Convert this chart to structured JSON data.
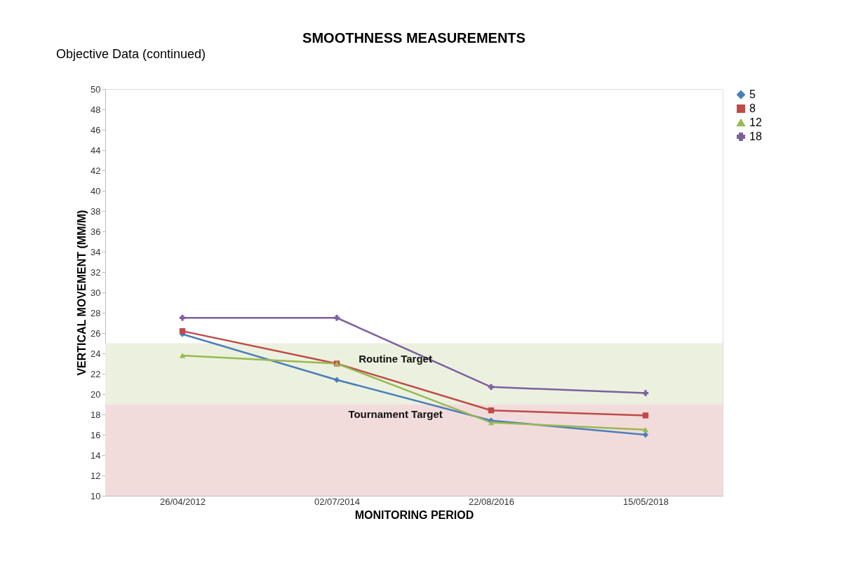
{
  "chart_data": {
    "type": "line",
    "title": "SMOOTHNESS MEASUREMENTS",
    "xlabel": "MONITORING PERIOD",
    "ylabel": "VERTICAL MOVEMENT (MM/M)",
    "categories": [
      "26/04/2012",
      "02/07/2014",
      "22/08/2016",
      "15/05/2018"
    ],
    "series": [
      {
        "name": "5",
        "color": "#4a7ebb",
        "marker": "diamond",
        "values": [
          25.9,
          21.4,
          17.4,
          16.0
        ]
      },
      {
        "name": "8",
        "color": "#be4b48",
        "marker": "square",
        "values": [
          26.2,
          23.0,
          18.4,
          17.9
        ]
      },
      {
        "name": "12",
        "color": "#98b954",
        "marker": "triangle",
        "values": [
          23.8,
          23.0,
          17.2,
          16.5
        ]
      },
      {
        "name": "18",
        "color": "#7d60a0",
        "marker": "cross",
        "values": [
          27.5,
          27.5,
          20.7,
          20.1
        ]
      }
    ],
    "ylim": [
      10,
      50
    ],
    "yticks": [
      10,
      12,
      14,
      16,
      18,
      20,
      22,
      24,
      26,
      28,
      30,
      32,
      34,
      36,
      38,
      40,
      42,
      44,
      46,
      48,
      50
    ],
    "bands": [
      {
        "axis": "y",
        "from": 19,
        "to": 25,
        "label": "Routine Target",
        "color": "#ebf1de"
      },
      {
        "axis": "y",
        "from": 10,
        "to": 19,
        "label": "Tournament Target",
        "color": "#f2dcdb"
      }
    ],
    "annotations": [
      "Objective Data (continued)"
    ],
    "grid": false,
    "legend": "right"
  }
}
